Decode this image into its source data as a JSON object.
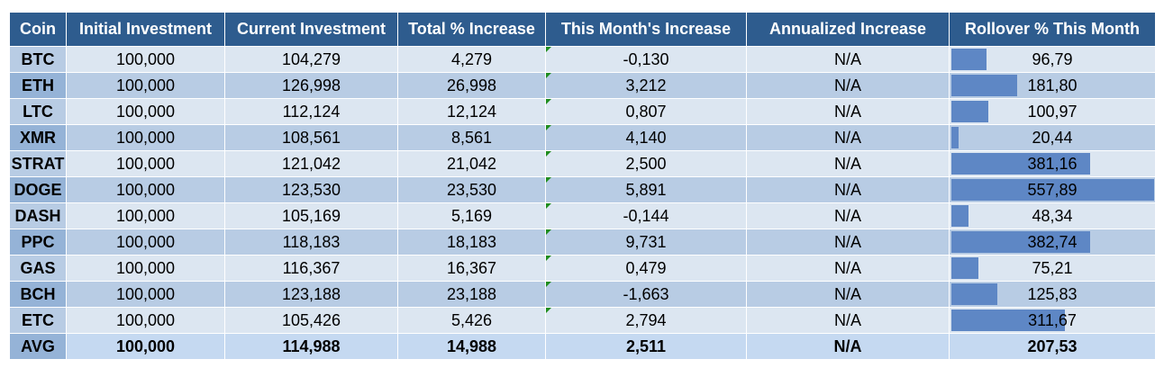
{
  "headers": [
    "Coin",
    "Initial Investment",
    "Current Investment",
    "Total % Increase",
    "This Month's Increase",
    "Annualized Increase",
    "Rollover % This Month"
  ],
  "rows": [
    {
      "coin": "BTC",
      "initial": "100,000",
      "current": "104,279",
      "total": "4,279",
      "month": "-0,130",
      "annual": "N/A",
      "rollover": "96,79",
      "rollover_value": 96.79
    },
    {
      "coin": "ETH",
      "initial": "100,000",
      "current": "126,998",
      "total": "26,998",
      "month": "3,212",
      "annual": "N/A",
      "rollover": "181,80",
      "rollover_value": 181.8
    },
    {
      "coin": "LTC",
      "initial": "100,000",
      "current": "112,124",
      "total": "12,124",
      "month": "0,807",
      "annual": "N/A",
      "rollover": "100,97",
      "rollover_value": 100.97
    },
    {
      "coin": "XMR",
      "initial": "100,000",
      "current": "108,561",
      "total": "8,561",
      "month": "4,140",
      "annual": "N/A",
      "rollover": "20,44",
      "rollover_value": 20.44
    },
    {
      "coin": "STRAT",
      "initial": "100,000",
      "current": "121,042",
      "total": "21,042",
      "month": "2,500",
      "annual": "N/A",
      "rollover": "381,16",
      "rollover_value": 381.16
    },
    {
      "coin": "DOGE",
      "initial": "100,000",
      "current": "123,530",
      "total": "23,530",
      "month": "5,891",
      "annual": "N/A",
      "rollover": "557,89",
      "rollover_value": 557.89
    },
    {
      "coin": "DASH",
      "initial": "100,000",
      "current": "105,169",
      "total": "5,169",
      "month": "-0,144",
      "annual": "N/A",
      "rollover": "48,34",
      "rollover_value": 48.34
    },
    {
      "coin": "PPC",
      "initial": "100,000",
      "current": "118,183",
      "total": "18,183",
      "month": "9,731",
      "annual": "N/A",
      "rollover": "382,74",
      "rollover_value": 382.74
    },
    {
      "coin": "GAS",
      "initial": "100,000",
      "current": "116,367",
      "total": "16,367",
      "month": "0,479",
      "annual": "N/A",
      "rollover": "75,21",
      "rollover_value": 75.21
    },
    {
      "coin": "BCH",
      "initial": "100,000",
      "current": "123,188",
      "total": "23,188",
      "month": "-1,663",
      "annual": "N/A",
      "rollover": "125,83",
      "rollover_value": 125.83
    },
    {
      "coin": "ETC",
      "initial": "100,000",
      "current": "105,426",
      "total": "5,426",
      "month": "2,794",
      "annual": "N/A",
      "rollover": "311,67",
      "rollover_value": 311.67
    }
  ],
  "avg": {
    "coin": "AVG",
    "initial": "100,000",
    "current": "114,988",
    "total": "14,988",
    "month": "2,511",
    "annual": "N/A",
    "rollover": "207,53"
  },
  "colors": {
    "header_bg": "#2e5c8e",
    "row_light": "#dce6f1",
    "row_dark": "#b8cce4",
    "databar": "#5e87c5",
    "error_flag": "#1e8c1e"
  }
}
